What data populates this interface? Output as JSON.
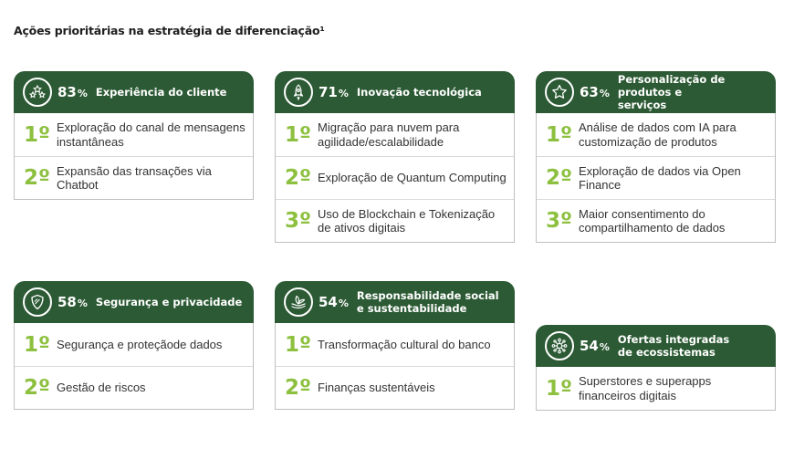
{
  "page": {
    "title": "Ações prioritárias na estratégia de diferenciação¹"
  },
  "colors": {
    "header": "#2c5a34",
    "rank": "#8dc03f"
  },
  "cards": [
    {
      "icon": "stars-icon",
      "percent": "83",
      "percent_sign": "%",
      "title": "Experiência do cliente",
      "items": [
        {
          "rank": "1º",
          "text": "Exploração do canal de mensagens instantâneas"
        },
        {
          "rank": "2º",
          "text": "Expansão das transações via Chatbot"
        }
      ]
    },
    {
      "icon": "rocket-icon",
      "percent": "71",
      "percent_sign": "%",
      "title": "Inovação tecnológica",
      "items": [
        {
          "rank": "1º",
          "text": "Migração para nuvem para agilidade/escalabilidade"
        },
        {
          "rank": "2º",
          "text": "Exploração de Quantum Computing"
        },
        {
          "rank": "3º",
          "text": "Uso de Blockchain e Tokenização de ativos digitais"
        }
      ]
    },
    {
      "icon": "star-icon",
      "percent": "63",
      "percent_sign": "%",
      "title": "Personalização de produtos e serviços",
      "items": [
        {
          "rank": "1º",
          "text": "Análise de dados com IA para customização de produtos"
        },
        {
          "rank": "2º",
          "text": "Exploração de dados via Open Finance"
        },
        {
          "rank": "3º",
          "text": "Maior consentimento do compartilhamento de dados"
        }
      ]
    },
    {
      "icon": "shield-icon",
      "percent": "58",
      "percent_sign": "%",
      "title": "Segurança e privacidade",
      "items": [
        {
          "rank": "1º",
          "text": "Segurança e proteçãode dados"
        },
        {
          "rank": "2º",
          "text": "Gestão de riscos"
        }
      ]
    },
    {
      "icon": "leaf-hand-icon",
      "percent": "54",
      "percent_sign": "%",
      "title": "Responsabilidade social e sustentabilidade",
      "items": [
        {
          "rank": "1º",
          "text": "Transformação cultural do banco"
        },
        {
          "rank": "2º",
          "text": "Finanças sustentáveis"
        }
      ]
    },
    {
      "icon": "network-icon",
      "percent": "54",
      "percent_sign": "%",
      "title": "Ofertas integradas de ecossistemas",
      "items": [
        {
          "rank": "1º",
          "text": "Superstores e superapps financeiros digitais"
        }
      ]
    }
  ]
}
